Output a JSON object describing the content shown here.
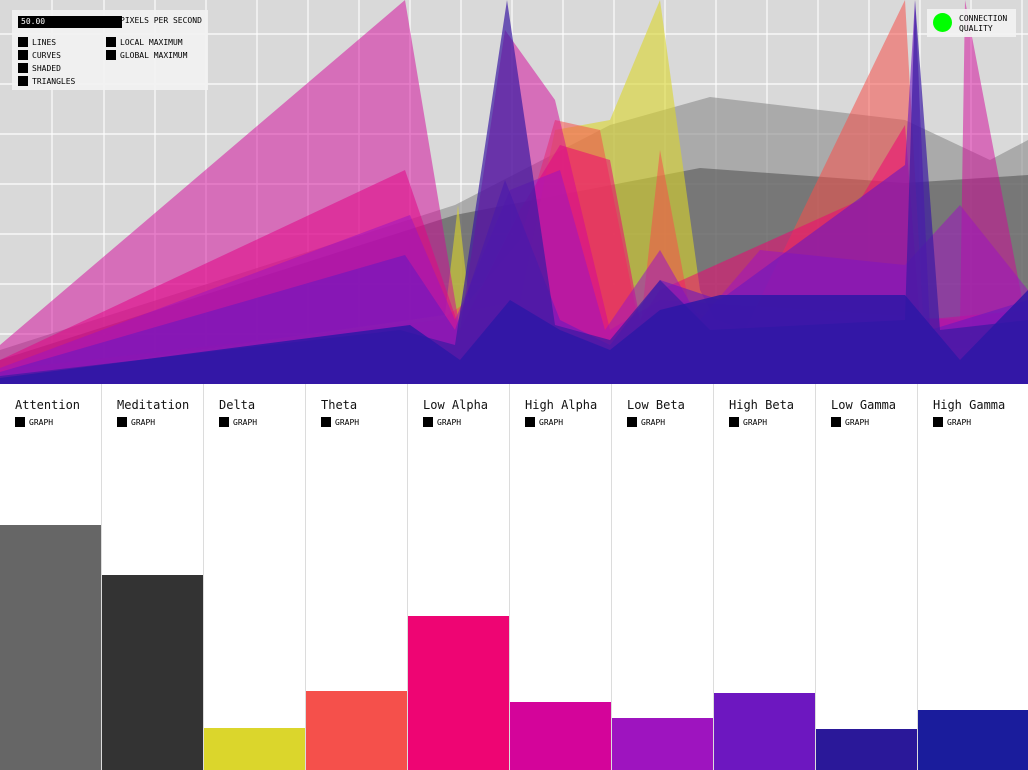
{
  "settings": {
    "pixels_per_second_value": "50.00",
    "pixels_per_second_label": "PIXELS PER SECOND",
    "options": {
      "lines": "LINES",
      "curves": "CURVES",
      "shaded": "SHADED",
      "triangles": "TRIANGLES",
      "local_maximum": "LOCAL MAXIMUM",
      "global_maximum": "GLOBAL MAXIMUM"
    }
  },
  "connection": {
    "label": "CONNECTION QUALITY",
    "status_color": "#00ff00"
  },
  "graph_toggle_label": "GRAPH",
  "bands": [
    {
      "name": "Attention",
      "level": 0.635,
      "color": "#666666"
    },
    {
      "name": "Meditation",
      "level": 0.505,
      "color": "#333333"
    },
    {
      "name": "Delta",
      "level": 0.11,
      "color": "#dbd62c"
    },
    {
      "name": "Theta",
      "level": 0.205,
      "color": "#f5504b"
    },
    {
      "name": "Low Alpha",
      "level": 0.4,
      "color": "#ee0573"
    },
    {
      "name": "High Alpha",
      "level": 0.175,
      "color": "#d4049a"
    },
    {
      "name": "Low Beta",
      "level": 0.135,
      "color": "#9e14bf"
    },
    {
      "name": "High Beta",
      "level": 0.2,
      "color": "#6d17c0"
    },
    {
      "name": "Low Gamma",
      "level": 0.107,
      "color": "#2a1899"
    },
    {
      "name": "High Gamma",
      "level": 0.155,
      "color": "#1a1c9c"
    }
  ]
}
